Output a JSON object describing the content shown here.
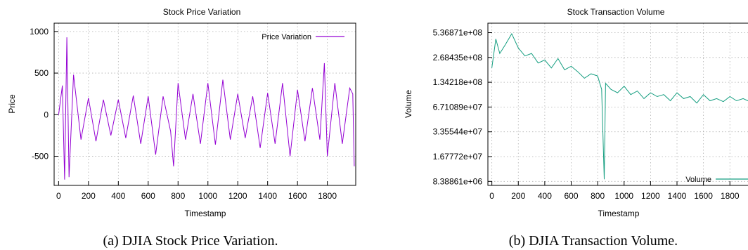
{
  "chart_data": [
    {
      "type": "line",
      "title": "Stock Price Variation",
      "xlabel": "Timestamp",
      "ylabel": "Price",
      "xlim": [
        -30,
        1990
      ],
      "ylim": [
        -850,
        1100
      ],
      "x_ticks": [
        "0",
        "200",
        "400",
        "600",
        "800",
        "1000",
        "1200",
        "1400",
        "1600",
        "1800"
      ],
      "y_ticks": [
        "-500",
        "0",
        "500",
        "1000"
      ],
      "grid": true,
      "legend_position": "top-right",
      "color": "#9400d3",
      "series": [
        {
          "name": "Price Variation",
          "x": [
            0,
            25,
            40,
            55,
            70,
            100,
            150,
            200,
            250,
            300,
            350,
            400,
            450,
            500,
            550,
            600,
            650,
            700,
            750,
            770,
            800,
            850,
            900,
            950,
            1000,
            1050,
            1100,
            1150,
            1200,
            1250,
            1300,
            1350,
            1400,
            1450,
            1500,
            1550,
            1600,
            1650,
            1700,
            1750,
            1780,
            1800,
            1850,
            1900,
            1950,
            1970,
            1980
          ],
          "y": [
            0,
            350,
            -780,
            930,
            -750,
            480,
            -300,
            200,
            -320,
            180,
            -250,
            180,
            -280,
            230,
            -350,
            220,
            -480,
            220,
            -200,
            -620,
            380,
            -300,
            250,
            -350,
            380,
            -360,
            420,
            -300,
            250,
            -280,
            220,
            -400,
            260,
            -350,
            380,
            -500,
            300,
            -320,
            320,
            -300,
            620,
            -500,
            380,
            -350,
            320,
            250,
            -620
          ]
        }
      ],
      "caption": "(a) DJIA Stock Price Variation."
    },
    {
      "type": "line",
      "title": "Stock Transaction Volume",
      "xlabel": "Timestamp",
      "ylabel": "Volume",
      "y_scale": "log2",
      "xlim": [
        -30,
        1990
      ],
      "ylim": [
        7500000,
        700000000
      ],
      "x_ticks": [
        "0",
        "200",
        "400",
        "600",
        "800",
        "1000",
        "1200",
        "1400",
        "1600",
        "1800"
      ],
      "y_ticks": [
        "8.38861e+06",
        "1.67772e+07",
        "3.35544e+07",
        "6.71089e+07",
        "1.34218e+08",
        "2.68435e+08",
        "5.36871e+08"
      ],
      "grid": true,
      "legend_position": "bottom-right",
      "color": "#159e80",
      "series": [
        {
          "name": "Volume",
          "x": [
            0,
            30,
            60,
            100,
            150,
            200,
            250,
            300,
            350,
            400,
            450,
            500,
            550,
            600,
            650,
            700,
            750,
            800,
            830,
            850,
            860,
            900,
            950,
            1000,
            1050,
            1100,
            1150,
            1200,
            1250,
            1300,
            1350,
            1400,
            1450,
            1500,
            1550,
            1600,
            1650,
            1700,
            1750,
            1800,
            1850,
            1900,
            1950,
            1980
          ],
          "y": [
            200000000,
            450000000,
            300000000,
            380000000,
            520000000,
            350000000,
            280000000,
            300000000,
            230000000,
            250000000,
            200000000,
            260000000,
            190000000,
            210000000,
            180000000,
            150000000,
            170000000,
            160000000,
            110000000,
            8900000,
            130000000,
            110000000,
            100000000,
            120000000,
            95000000,
            105000000,
            85000000,
            100000000,
            90000000,
            95000000,
            80000000,
            100000000,
            85000000,
            90000000,
            75000000,
            95000000,
            80000000,
            85000000,
            78000000,
            90000000,
            80000000,
            85000000,
            78000000,
            150000000
          ]
        }
      ],
      "caption": "(b) DJIA Transaction Volume."
    }
  ]
}
